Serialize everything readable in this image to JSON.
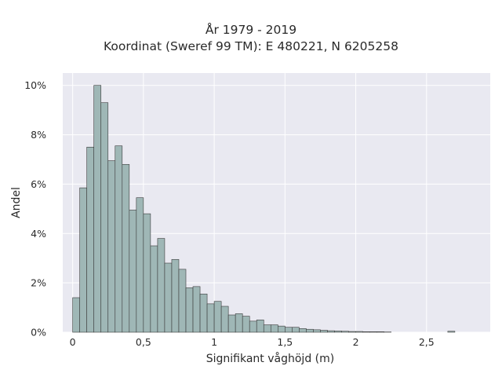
{
  "chart_data": {
    "type": "bar",
    "title_line1": "År 1979 - 2019",
    "title_line2": "Koordinat (Sweref 99 TM): E 480221, N 6205258",
    "xlabel": "Signifikant våghöjd (m)",
    "ylabel": "Andel",
    "bin_width": 0.05,
    "bin_start": 0.0,
    "xlim": [
      -0.07,
      2.95
    ],
    "ylim": [
      0,
      10.5
    ],
    "x_ticks": [
      0,
      0.5,
      1,
      1.5,
      2,
      2.5
    ],
    "x_tick_labels": [
      "0",
      "0,5",
      "1",
      "1,5",
      "2",
      "2,5"
    ],
    "y_ticks": [
      0,
      2,
      4,
      6,
      8,
      10
    ],
    "y_tick_labels": [
      "0%",
      "2%",
      "4%",
      "6%",
      "8%",
      "10%"
    ],
    "grid": true,
    "values": [
      1.4,
      5.85,
      7.5,
      10.0,
      9.3,
      6.95,
      7.55,
      6.8,
      4.95,
      5.45,
      4.8,
      3.5,
      3.8,
      2.8,
      2.95,
      2.55,
      1.8,
      1.85,
      1.55,
      1.15,
      1.25,
      1.05,
      0.7,
      0.75,
      0.65,
      0.45,
      0.5,
      0.3,
      0.3,
      0.25,
      0.2,
      0.2,
      0.15,
      0.12,
      0.1,
      0.08,
      0.06,
      0.05,
      0.04,
      0.03,
      0.03,
      0.02,
      0.02,
      0.02,
      0.01,
      0.0,
      0.0,
      0.0,
      0.0,
      0.0,
      0.0,
      0.0,
      0.0,
      0.04
    ],
    "colors": {
      "bar_fill": "#9fb7b6",
      "bar_stroke": "#3b3b3b",
      "plot_bg": "#e9e9f1",
      "grid": "#ffffff",
      "text": "#2a2a2a"
    }
  }
}
